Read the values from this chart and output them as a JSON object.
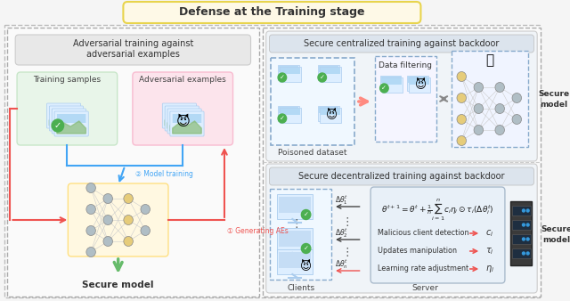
{
  "title": "Defense at the Training stage",
  "title_bg": "#fef9e7",
  "title_color": "#333333",
  "outer_bg": "#f5f5f5",
  "left_panel_title_line1": "Adversarial training against",
  "left_panel_title_line2": "adversarial examples",
  "left_panel_bg": "#f0f0f0",
  "training_samples_label": "Training samples",
  "training_samples_bg": "#e8f5e9",
  "adversarial_examples_label": "Adversarial examples",
  "adversarial_examples_bg": "#fce4ec",
  "arrow1_label": "2: Model training",
  "arrow2_label": "1: Generating AEs",
  "secure_model_label_left": "Secure model",
  "top_right_title": "Secure centralized training against backdoor",
  "poisoned_dataset_label": "Poisoned dataset",
  "data_filtering_label": "Data filtering",
  "secure_model_label_top_right_line1": "Secure",
  "secure_model_label_top_right_line2": "model",
  "bottom_right_title": "Secure decentralized training against backdoor",
  "clients_label": "Clients",
  "server_label": "Server",
  "detection_label": "Malicious client detection",
  "manipulation_label": "Updates manipulation",
  "learning_rate_label": "Learning rate adjustment",
  "secure_model_label_bottom_right_line1": "Secure",
  "secure_model_label_bottom_right_line2": "model",
  "outer_border_color": "#cccccc",
  "panel_border_color": "#aaaaaa",
  "dashed_border_color": "#88aacc",
  "green_arrow_color": "#66bb6a",
  "red_arrow_color": "#ef5350",
  "blue_arrow_color": "#42a5f5",
  "salmon_arrow_color": "#ff8a80",
  "gray_arrow_color": "#888888",
  "left_panel_label_bg": "#e0e0e0",
  "formula_box_bg": "#e8f0f8",
  "nn_bg": "#e8eaf6"
}
